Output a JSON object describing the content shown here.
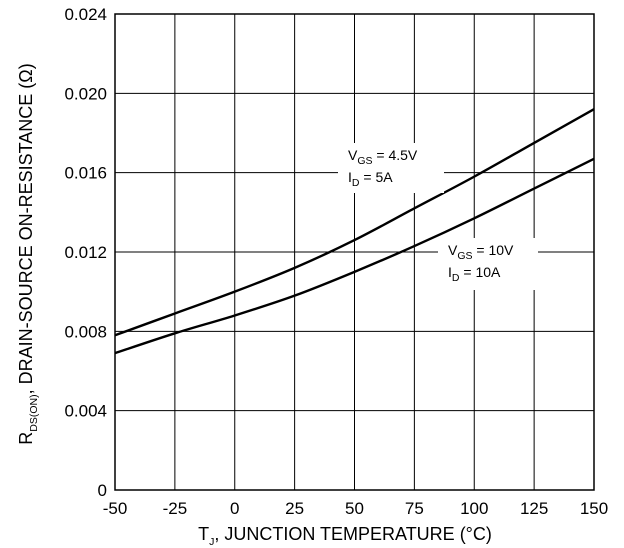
{
  "chart_data": {
    "type": "line",
    "title": "",
    "xlabel": {
      "main": "T",
      "sub": "J",
      "rest": ", JUNCTION TEMPERATURE (°C)"
    },
    "ylabel": {
      "main": "R",
      "sub": "DS(ON)",
      "rest": ", DRAIN-SOURCE ON-RESISTANCE (Ω)"
    },
    "xlim": [
      -50,
      150
    ],
    "ylim": [
      0,
      0.024
    ],
    "x_ticks": [
      -50,
      -25,
      0,
      25,
      50,
      75,
      100,
      125,
      150
    ],
    "x_tick_labels": [
      "-50",
      "-25",
      "0",
      "25",
      "50",
      "75",
      "100",
      "125",
      "150"
    ],
    "y_ticks": [
      0,
      0.004,
      0.008,
      0.012,
      0.016,
      0.02,
      0.024
    ],
    "y_tick_labels": [
      "0",
      "0.004",
      "0.008",
      "0.012",
      "0.016",
      "0.020",
      "0.024"
    ],
    "grid": true,
    "legend": "none",
    "series": [
      {
        "annotation": [
          {
            "main": "V",
            "sub": "GS",
            "rest": " = 4.5V"
          },
          {
            "main": "I",
            "sub": "D",
            "rest": " = 5A"
          }
        ],
        "x": [
          -50,
          -25,
          0,
          25,
          50,
          75,
          100,
          125,
          150
        ],
        "y": [
          0.0078,
          0.0089,
          0.01,
          0.0112,
          0.0126,
          0.0142,
          0.0158,
          0.0175,
          0.0192
        ]
      },
      {
        "annotation": [
          {
            "main": "V",
            "sub": "GS",
            "rest": " = 10V"
          },
          {
            "main": "I",
            "sub": "D",
            "rest": " = 10A"
          }
        ],
        "x": [
          -50,
          -25,
          0,
          25,
          50,
          75,
          100,
          125,
          150
        ],
        "y": [
          0.0069,
          0.0079,
          0.0088,
          0.0098,
          0.011,
          0.0123,
          0.0137,
          0.0152,
          0.0167
        ]
      }
    ],
    "line_color": "#000000",
    "grid_color": "#000000"
  }
}
